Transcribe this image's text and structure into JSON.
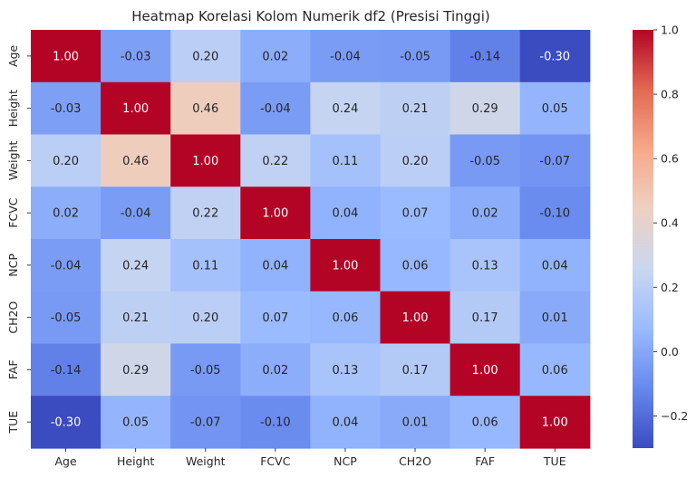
{
  "chart_data": {
    "type": "heatmap",
    "title": "Heatmap Korelasi Kolom Numerik df2 (Presisi Tinggi)",
    "xlabel": "",
    "ylabel": "",
    "x_labels": [
      "Age",
      "Height",
      "Weight",
      "FCVC",
      "NCP",
      "CH2O",
      "FAF",
      "TUE"
    ],
    "y_labels": [
      "Age",
      "Height",
      "Weight",
      "FCVC",
      "NCP",
      "CH2O",
      "FAF",
      "TUE"
    ],
    "values": [
      [
        1.0,
        -0.03,
        0.2,
        0.02,
        -0.04,
        -0.05,
        -0.14,
        -0.3
      ],
      [
        -0.03,
        1.0,
        0.46,
        -0.04,
        0.24,
        0.21,
        0.29,
        0.05
      ],
      [
        0.2,
        0.46,
        1.0,
        0.22,
        0.11,
        0.2,
        -0.05,
        -0.07
      ],
      [
        0.02,
        -0.04,
        0.22,
        1.0,
        0.04,
        0.07,
        0.02,
        -0.1
      ],
      [
        -0.04,
        0.24,
        0.11,
        0.04,
        1.0,
        0.06,
        0.13,
        0.04
      ],
      [
        -0.05,
        0.21,
        0.2,
        0.07,
        0.06,
        1.0,
        0.17,
        0.01
      ],
      [
        -0.14,
        0.29,
        -0.05,
        0.02,
        0.13,
        0.17,
        1.0,
        0.06
      ],
      [
        -0.3,
        0.05,
        -0.07,
        -0.1,
        0.04,
        0.01,
        0.06,
        1.0
      ]
    ],
    "cell_labels": [
      [
        "1.00",
        "-0.03",
        "0.20",
        "0.02",
        "-0.04",
        "-0.05",
        "-0.14",
        "-0.30"
      ],
      [
        "-0.03",
        "1.00",
        "0.46",
        "-0.04",
        "0.24",
        "0.21",
        "0.29",
        "0.05"
      ],
      [
        "0.20",
        "0.46",
        "1.00",
        "0.22",
        "0.11",
        "0.20",
        "-0.05",
        "-0.07"
      ],
      [
        "0.02",
        "-0.04",
        "0.22",
        "1.00",
        "0.04",
        "0.07",
        "0.02",
        "-0.10"
      ],
      [
        "-0.04",
        "0.24",
        "0.11",
        "0.04",
        "1.00",
        "0.06",
        "0.13",
        "0.04"
      ],
      [
        "-0.05",
        "0.21",
        "0.20",
        "0.07",
        "0.06",
        "1.00",
        "0.17",
        "0.01"
      ],
      [
        "-0.14",
        "0.29",
        "-0.05",
        "0.02",
        "0.13",
        "0.17",
        "1.00",
        "0.06"
      ],
      [
        "-0.30",
        "0.05",
        "-0.07",
        "-0.10",
        "0.04",
        "0.01",
        "0.06",
        "1.00"
      ]
    ],
    "colormap": "coolwarm",
    "vmin": -0.3,
    "vmax": 1.0,
    "colorbar_ticks": [
      -0.2,
      0.0,
      0.2,
      0.4,
      0.6,
      0.8,
      1.0
    ],
    "colorbar_tick_labels": [
      "−0.2",
      "0.0",
      "0.2",
      "0.4",
      "0.6",
      "0.8",
      "1.0"
    ],
    "colorbar_stops": [
      "#3b4cc0",
      "#6788ee",
      "#9abbff",
      "#c9d7f0",
      "#edd1c2",
      "#f7a889",
      "#e26952",
      "#b40426"
    ],
    "annotation_dark_text": "#262626",
    "annotation_light_text": "#ffffff"
  }
}
